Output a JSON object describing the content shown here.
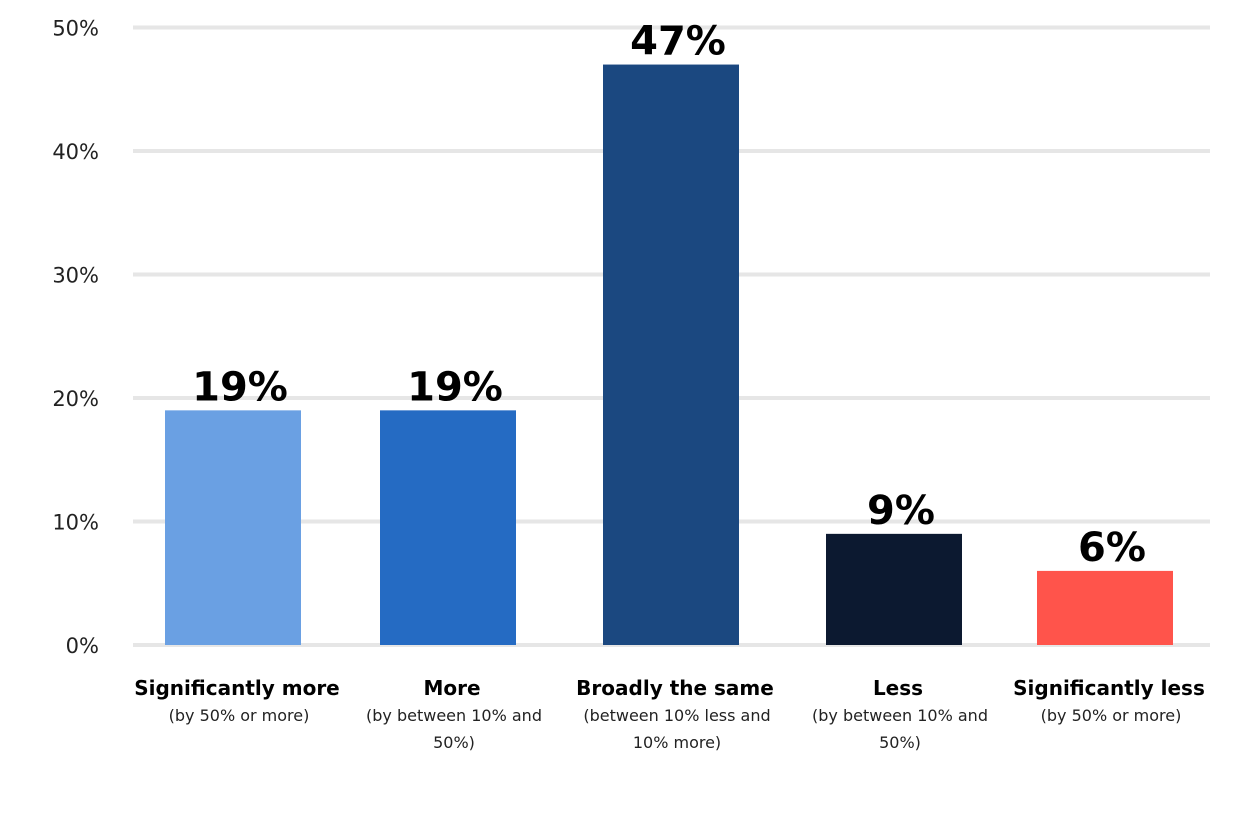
{
  "chart_data": {
    "type": "bar",
    "title": "",
    "xlabel": "",
    "ylabel": "",
    "ylim": [
      0,
      50
    ],
    "y_ticks": [
      0,
      10,
      20,
      30,
      40,
      50
    ],
    "y_tick_labels": [
      "0%",
      "10%",
      "20%",
      "30%",
      "40%",
      "50%"
    ],
    "grid": true,
    "categories": [
      "Significantly more",
      "More",
      "Broadly the same",
      "Less",
      "Significantly less"
    ],
    "category_sublabels": [
      [
        "(by 50% or more)"
      ],
      [
        "(by between 10% and",
        "50%)"
      ],
      [
        "(between 10% less and",
        "10% more)"
      ],
      [
        "(by between 10% and",
        "50%)"
      ],
      [
        "(by 50% or more)"
      ]
    ],
    "values": [
      19,
      19,
      47,
      9,
      6
    ],
    "data_labels": [
      "19%",
      "19%",
      "47%",
      "9%",
      "6%"
    ],
    "colors": [
      "#6aa0e3",
      "#256bc3",
      "#1b4880",
      "#0c1930",
      "#ff544b"
    ],
    "grid_color": "#e6e6e6",
    "text_color": "#000000"
  }
}
